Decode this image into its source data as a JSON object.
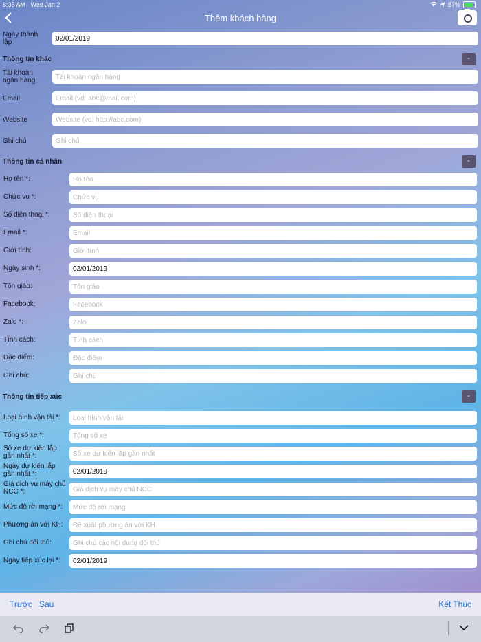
{
  "status": {
    "time": "8:35 AM",
    "date": "Wed Jan 2",
    "battery": "87%"
  },
  "nav": {
    "title": "Thêm khách hàng"
  },
  "top_field": {
    "label": "Ngày thành lập",
    "value": "02/01/2019"
  },
  "section_other": {
    "title": "Thông tin khác",
    "collapse": "-",
    "fields": [
      {
        "label": "Tài khoản ngân hàng",
        "value": "",
        "placeholder": "Tài khoản ngân hàng"
      },
      {
        "label": "Email",
        "value": "",
        "placeholder": "Email (vd: abc@mail.com)"
      },
      {
        "label": "Website",
        "value": "",
        "placeholder": "Website (vd: http://abc.com)"
      },
      {
        "label": "Ghi chú",
        "value": "",
        "placeholder": "Ghi chú"
      }
    ]
  },
  "section_personal": {
    "title": "Thông tin cá nhân",
    "collapse": "-",
    "fields": [
      {
        "label": "Họ tên *:",
        "value": "",
        "placeholder": "Họ tên"
      },
      {
        "label": "Chức vụ *:",
        "value": "",
        "placeholder": "Chức vụ"
      },
      {
        "label": "Số điện thoại *:",
        "value": "",
        "placeholder": "Số điện thoại"
      },
      {
        "label": "Email *:",
        "value": "",
        "placeholder": "Email"
      },
      {
        "label": "Giới tính:",
        "value": "",
        "placeholder": "Giới tính"
      },
      {
        "label": "Ngày sinh *:",
        "value": "02/01/2019",
        "placeholder": ""
      },
      {
        "label": "Tôn giáo:",
        "value": "",
        "placeholder": "Tôn giáo"
      },
      {
        "label": "Facebook:",
        "value": "",
        "placeholder": "Facebook"
      },
      {
        "label": "Zalo *:",
        "value": "",
        "placeholder": "Zalo"
      },
      {
        "label": "Tính cách:",
        "value": "",
        "placeholder": "Tính cách"
      },
      {
        "label": "Đặc điểm:",
        "value": "",
        "placeholder": "Đặc điểm"
      },
      {
        "label": "Ghi chú:",
        "value": "",
        "placeholder": "Ghi chú"
      }
    ]
  },
  "section_contact": {
    "title": "Thông tin tiếp xúc",
    "collapse": "-",
    "fields": [
      {
        "label": "Loại hình vận tải *:",
        "value": "",
        "placeholder": "Loại hình vận tải"
      },
      {
        "label": "Tổng số xe *:",
        "value": "",
        "placeholder": "Tổng số xe"
      },
      {
        "label": "Số xe dự kiến lắp gần nhất *:",
        "value": "",
        "placeholder": "Số xe dự kiến lắp gần nhất"
      },
      {
        "label": "Ngày dự kiến lắp gần nhất *:",
        "value": "02/01/2019",
        "placeholder": ""
      },
      {
        "label": "Giá dịch vụ máy chủ NCC *:",
        "value": "",
        "placeholder": "Giá dịch vụ máy chủ NCC"
      },
      {
        "label": "Mức độ rời mạng *:",
        "value": "",
        "placeholder": "Mức độ rời mạng"
      },
      {
        "label": "Phương án với KH:",
        "value": "",
        "placeholder": "Đề xuất phương án với KH"
      },
      {
        "label": "Ghi chú đối thủ:",
        "value": "",
        "placeholder": "Ghi chú các nội dung đối thủ"
      },
      {
        "label": "Ngày tiếp xúc lại *:",
        "value": "02/01/2019",
        "placeholder": ""
      }
    ]
  },
  "toolbar": {
    "prev": "Trước",
    "next": "Sau",
    "finish": "Kết Thúc"
  },
  "icons": [
    "back-icon",
    "camera-icon",
    "wifi-icon",
    "location-icon",
    "battery-icon",
    "undo-icon",
    "redo-icon",
    "paste-icon",
    "keyboard-dismiss-icon"
  ]
}
